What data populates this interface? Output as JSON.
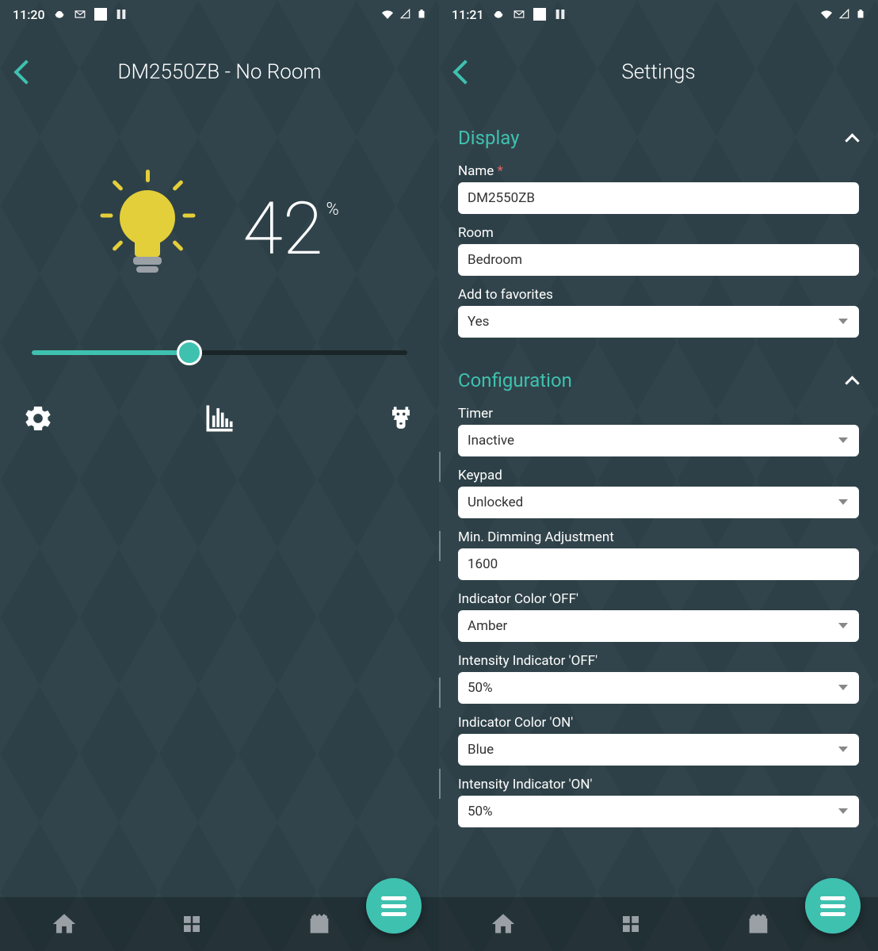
{
  "left": {
    "status_time": "11:20",
    "page_title": "DM2550ZB - No Room",
    "brightness_value": "42",
    "brightness_unit": "%",
    "slider_percent": 42,
    "colors": {
      "accent": "#3fc1b0",
      "bulb": "#e3cf3a",
      "background": "#2d4047"
    }
  },
  "right": {
    "status_time": "11:21",
    "page_title": "Settings",
    "sections": {
      "display": {
        "heading": "Display",
        "name_label": "Name",
        "name_value": "DM2550ZB",
        "room_label": "Room",
        "room_value": "Bedroom",
        "favorites_label": "Add to favorites",
        "favorites_value": "Yes"
      },
      "configuration": {
        "heading": "Configuration",
        "timer_label": "Timer",
        "timer_value": "Inactive",
        "keypad_label": "Keypad",
        "keypad_value": "Unlocked",
        "min_dim_label": "Min. Dimming Adjustment",
        "min_dim_value": "1600",
        "indicator_off_color_label": "Indicator Color 'OFF'",
        "indicator_off_color_value": "Amber",
        "intensity_off_label": "Intensity Indicator 'OFF'",
        "intensity_off_value": "50%",
        "indicator_on_color_label": "Indicator Color 'ON'",
        "indicator_on_color_value": "Blue",
        "intensity_on_label": "Intensity Indicator 'ON'",
        "intensity_on_value": "50%"
      }
    }
  }
}
